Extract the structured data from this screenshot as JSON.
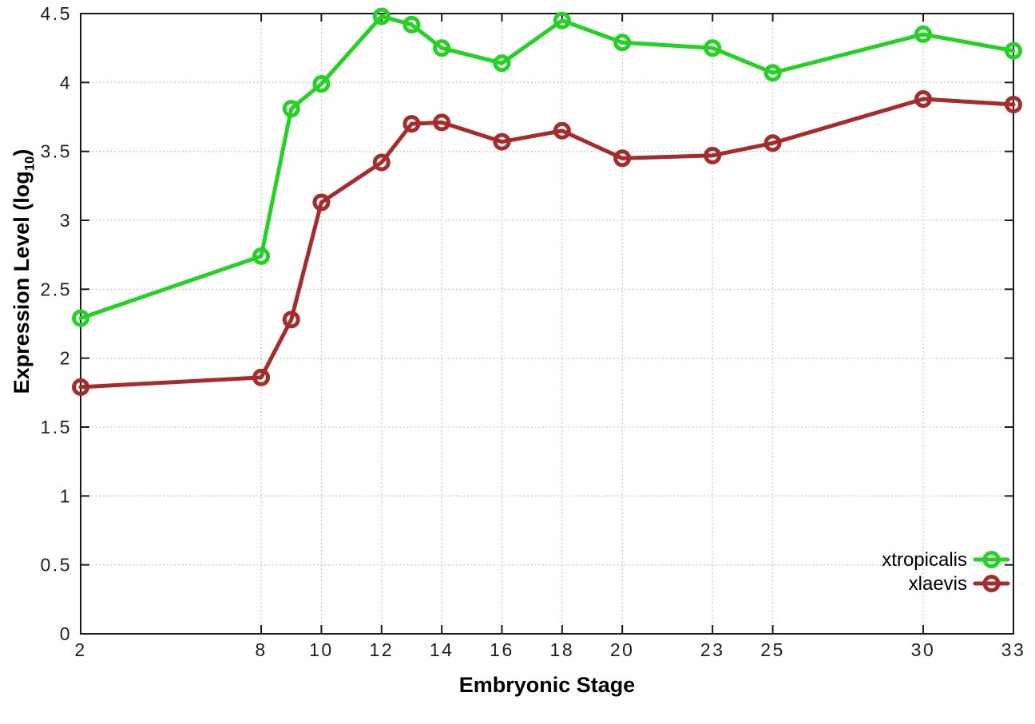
{
  "figure": {
    "xlabel": "Embryonic Stage",
    "ylabel_prefix": "Expression Level (log",
    "ylabel_sub": "10",
    "ylabel_suffix": ")"
  },
  "chart_data": {
    "type": "line",
    "title": "",
    "xlabel": "Embryonic Stage",
    "ylabel": "Expression Level (log10)",
    "xlim": [
      2,
      33
    ],
    "ylim": [
      0,
      4.5
    ],
    "x_ticks": [
      2,
      8,
      10,
      12,
      14,
      16,
      18,
      20,
      23,
      25,
      30,
      33
    ],
    "y_ticks": [
      0,
      0.5,
      1,
      1.5,
      2,
      2.5,
      3,
      3.5,
      4,
      4.5
    ],
    "grid": true,
    "marker": "open-circle",
    "legend_position": "inside-bottom-right",
    "x": [
      2,
      8,
      9,
      10,
      12,
      13,
      14,
      16,
      18,
      20,
      23,
      25,
      30,
      33
    ],
    "series": [
      {
        "name": "xtropicalis",
        "color": "#26d126",
        "values": [
          2.29,
          2.74,
          3.81,
          3.99,
          4.48,
          4.42,
          4.25,
          4.14,
          4.45,
          4.29,
          4.25,
          4.07,
          4.35,
          4.23
        ]
      },
      {
        "name": "xlaevis",
        "color": "#a62b2b",
        "values": [
          1.79,
          1.86,
          2.28,
          3.13,
          3.42,
          3.7,
          3.71,
          3.57,
          3.65,
          3.45,
          3.47,
          3.56,
          3.88,
          3.84
        ]
      }
    ],
    "colors": {
      "axis": "#1a1a1a",
      "grid": "#bdbdbd",
      "tick_text": "#1f1f1f",
      "background": "#ffffff"
    }
  }
}
